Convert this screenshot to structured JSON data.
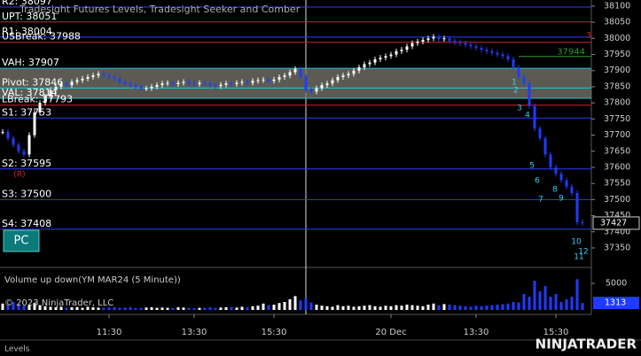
{
  "chart_data": {
    "type": "candlestick",
    "title": "Tradesight Futures Levels, Tradesight Seeker and Comber",
    "closes": [
      37710,
      37690,
      37670,
      37650,
      37640,
      37700,
      37770,
      37800,
      37820,
      37840,
      37850,
      37860,
      37855,
      37865,
      37870,
      37875,
      37880,
      37885,
      37890,
      37885,
      37880,
      37875,
      37865,
      37860,
      37855,
      37850,
      37845,
      37845,
      37850,
      37855,
      37860,
      37862,
      37858,
      37862,
      37865,
      37860,
      37858,
      37862,
      37860,
      37855,
      37852,
      37856,
      37860,
      37858,
      37862,
      37865,
      37862,
      37868,
      37870,
      37872,
      37868,
      37872,
      37880,
      37885,
      37895,
      37905,
      37880,
      37840,
      37835,
      37845,
      37855,
      37860,
      37870,
      37880,
      37885,
      37890,
      37900,
      37910,
      37920,
      37925,
      37935,
      37940,
      37945,
      37950,
      37960,
      37965,
      37975,
      37985,
      37990,
      37995,
      38000,
      38005,
      37998,
      38000,
      37992,
      37988,
      37985,
      37980,
      37975,
      37970,
      37965,
      37960,
      37955,
      37950,
      37945,
      37935,
      37910,
      37880,
      37860,
      37790,
      37720,
      37690,
      37640,
      37600,
      37580,
      37560,
      37540,
      37520,
      37430,
      37427
    ],
    "up_color": "#ffffff",
    "down_color": "#1e3cff",
    "ylim": [
      37295,
      38119
    ],
    "yticks": [
      37350,
      37400,
      37450,
      37500,
      37550,
      37600,
      37650,
      37700,
      37750,
      37800,
      37850,
      37900,
      37950,
      38000,
      38050,
      38100
    ],
    "xticks": [
      {
        "value": 20,
        "label": "11:30"
      },
      {
        "value": 36,
        "label": "13:30"
      },
      {
        "value": 51,
        "label": "15:30"
      },
      {
        "value": 73,
        "label": "20 Dec"
      },
      {
        "value": 89,
        "label": "13:30"
      },
      {
        "value": 104,
        "label": "15:30"
      }
    ],
    "last_price": 37427,
    "levels": [
      {
        "label": "R2: 38097",
        "value": 38097,
        "color": "#2a3cff"
      },
      {
        "label": "UPT: 38051",
        "value": 38051,
        "color": "#d02030"
      },
      {
        "label": "R1: 38004",
        "value": 38004,
        "color": "#2a3cff"
      },
      {
        "label": "USBreak: 37988",
        "value": 37988,
        "color": "#d02030"
      },
      {
        "label": "VAH: 37907",
        "value": 37907,
        "color": "#20c0d0"
      },
      {
        "label": "Pivot: 37846",
        "value": 37846,
        "color": "#20c0d0"
      },
      {
        "label": "VAL: 37814",
        "value": 37814,
        "color": "#20c0d0"
      },
      {
        "label": "LBreak: 37793",
        "value": 37793,
        "color": "#d02030"
      },
      {
        "label": "S1: 37753",
        "value": 37753,
        "color": "#2a3cff"
      },
      {
        "label": "S2: 37595",
        "value": 37595,
        "color": "#2a3cff"
      },
      {
        "label": "S3: 37500",
        "value": 37500,
        "color": "#2a3cff"
      },
      {
        "label": "S4: 37408",
        "value": 37408,
        "color": "#2a3cff"
      }
    ],
    "value_area_color": "#7a7a70",
    "target_label": "37944",
    "target_value": 37944,
    "annotations": [
      {
        "text": "1",
        "color": "#30d0f0"
      },
      {
        "text": "2",
        "color": "#30d0f0"
      },
      {
        "text": "3",
        "color": "#30d0f0"
      },
      {
        "text": "4",
        "color": "#30d0f0"
      },
      {
        "text": "5",
        "color": "#30d0f0"
      },
      {
        "text": "6",
        "color": "#30d0f0"
      },
      {
        "text": "7",
        "color": "#30d0f0"
      },
      {
        "text": "8",
        "color": "#30d0f0"
      },
      {
        "text": "9",
        "color": "#30d0f0"
      },
      {
        "text": "10",
        "color": "#30d0f0"
      },
      {
        "text": "11",
        "color": "#30d0f0"
      },
      {
        "text": "12",
        "color": "#30d0f0"
      },
      {
        "text": "3",
        "color": "#e02020"
      },
      {
        "text": "(R)",
        "color": "#e02020"
      }
    ],
    "button": "PC",
    "volume": {
      "title": "Volume up down(YM MAR24 (5 Minute))",
      "values": [
        1200,
        900,
        1500,
        1100,
        800,
        1000,
        1300,
        900,
        700,
        600,
        500,
        600,
        450,
        500,
        550,
        400,
        600,
        500,
        450,
        400,
        500,
        550,
        400,
        450,
        500,
        350,
        400,
        450,
        500,
        400,
        450,
        400,
        350,
        500,
        450,
        400,
        350,
        400,
        450,
        500,
        400,
        450,
        500,
        550,
        450,
        600,
        500,
        700,
        800,
        1200,
        900,
        1000,
        1300,
        1500,
        2000,
        2600,
        1800,
        2200,
        1400,
        1000,
        800,
        700,
        600,
        900,
        700,
        800,
        600,
        700,
        800,
        900,
        700,
        600,
        800,
        700,
        900,
        800,
        1000,
        900,
        800,
        700,
        1000,
        1200,
        900,
        1100,
        1000,
        900,
        800,
        700,
        600,
        800,
        700,
        800,
        900,
        1000,
        1100,
        1200,
        1500,
        1400,
        3000,
        2500,
        5500,
        3500,
        4500,
        2500,
        3000,
        1500,
        2000,
        2500,
        5800,
        1313
      ],
      "ylim": [
        0,
        8000
      ],
      "yticks": [
        5000
      ],
      "last_volume": 1313
    },
    "copyright": "© 2023 NinjaTrader, LLC",
    "tab": "Levels",
    "logo": "NINJATRADER"
  }
}
